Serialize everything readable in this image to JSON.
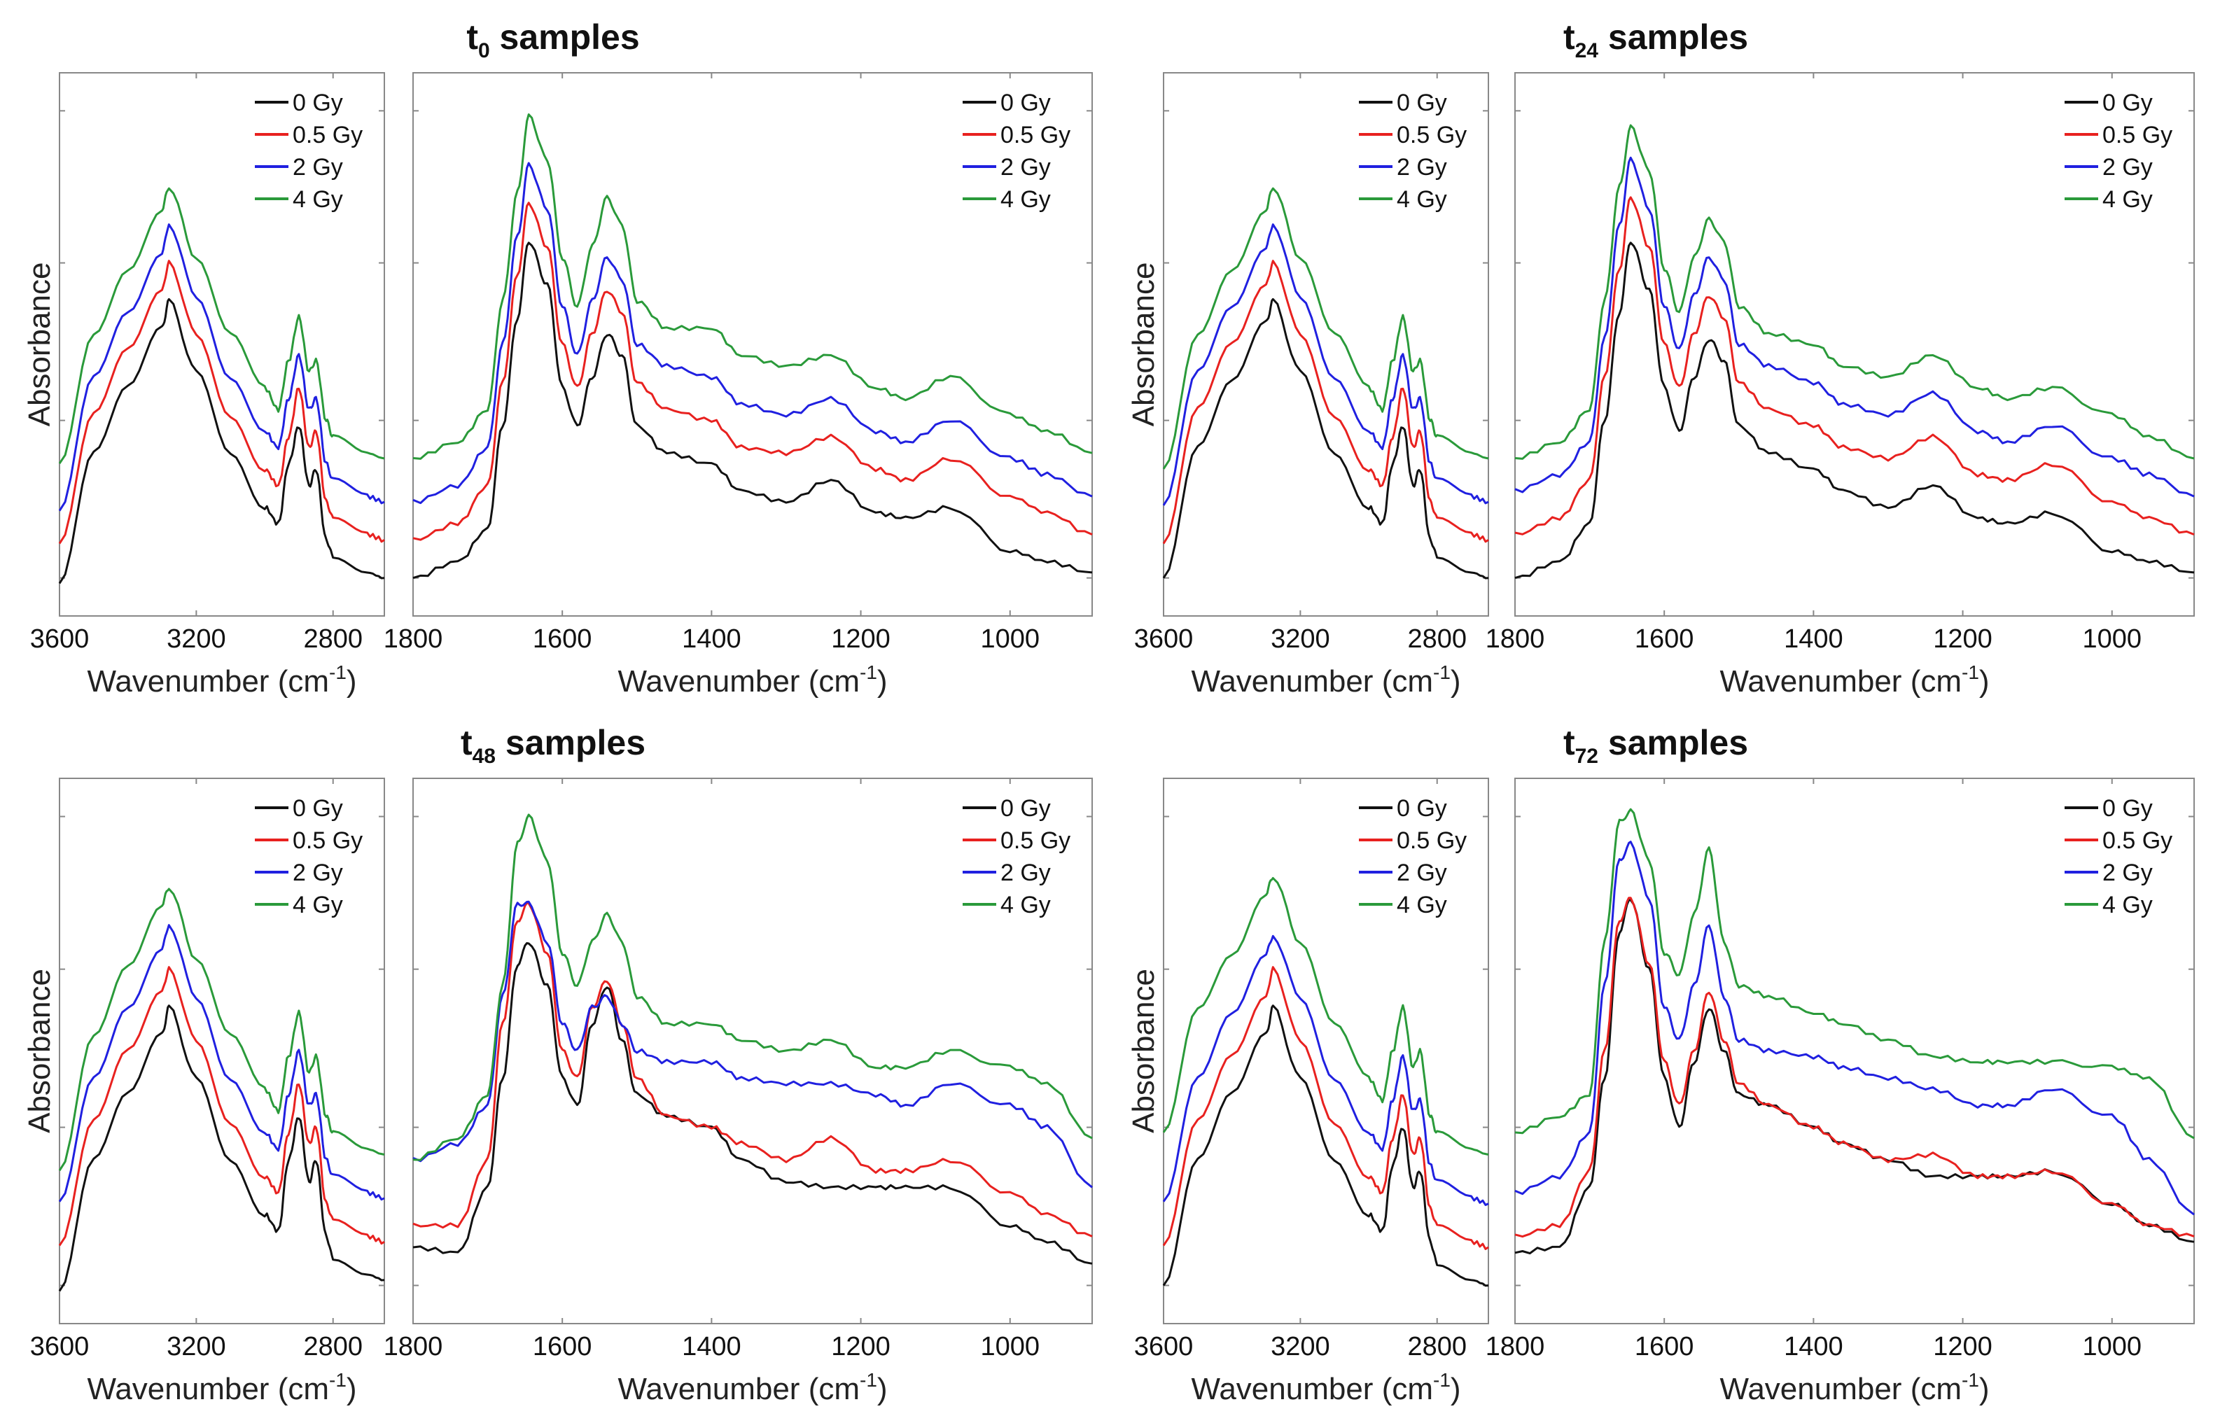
{
  "chart_data": {
    "type": "line",
    "colors": {
      "0 Gy": "#111111",
      "0.5 Gy": "#e8211f",
      "2 Gy": "#2020e0",
      "4 Gy": "#2a9a3a"
    },
    "legend": [
      "0 Gy",
      "0.5 Gy",
      "2 Gy",
      "4 Gy"
    ],
    "legend_placement": "top-right",
    "ylabel": "Absorbance",
    "xlabel": {
      "text": "Wavenumber (cm",
      "sup": "-1",
      "close": ")"
    },
    "high_region": {
      "xlim": [
        3600,
        2650
      ],
      "ticks": [
        3600,
        3200,
        2800
      ],
      "x": [
        3600,
        3500,
        3400,
        3300,
        3280,
        3200,
        3100,
        3000,
        2960,
        2930,
        2900,
        2870,
        2850,
        2820,
        2800,
        2700,
        2650
      ]
    },
    "low_region": {
      "xlim": [
        1800,
        890
      ],
      "ticks": [
        1800,
        1600,
        1400,
        1200,
        1000
      ],
      "x": [
        1800,
        1740,
        1700,
        1680,
        1660,
        1645,
        1620,
        1600,
        1580,
        1560,
        1540,
        1520,
        1500,
        1460,
        1400,
        1360,
        1300,
        1240,
        1180,
        1140,
        1080,
        1000,
        950,
        890
      ]
    },
    "ylim": [
      0,
      1
    ],
    "panels": [
      {
        "title": {
          "t": "t",
          "sub": "0",
          "rest": " samples"
        },
        "high": [
          {
            "name": "0 Gy",
            "y": [
              0.06,
              0.3,
              0.42,
              0.53,
              0.58,
              0.45,
              0.3,
              0.2,
              0.17,
              0.28,
              0.35,
              0.24,
              0.27,
              0.14,
              0.11,
              0.08,
              0.07
            ]
          },
          {
            "name": "0.5 Gy",
            "y": [
              0.13,
              0.37,
              0.49,
              0.6,
              0.65,
              0.52,
              0.37,
              0.27,
              0.24,
              0.33,
              0.42,
              0.31,
              0.34,
              0.21,
              0.18,
              0.15,
              0.14
            ]
          },
          {
            "name": "2 Gy",
            "y": [
              0.19,
              0.44,
              0.56,
              0.67,
              0.72,
              0.59,
              0.44,
              0.34,
              0.31,
              0.4,
              0.48,
              0.38,
              0.4,
              0.28,
              0.25,
              0.22,
              0.21
            ]
          },
          {
            "name": "4 Gy",
            "y": [
              0.28,
              0.52,
              0.64,
              0.75,
              0.79,
              0.66,
              0.52,
              0.42,
              0.38,
              0.47,
              0.55,
              0.45,
              0.47,
              0.36,
              0.33,
              0.3,
              0.29
            ]
          }
        ],
        "low": [
          {
            "name": "0 Gy",
            "y": [
              0.07,
              0.1,
              0.16,
              0.35,
              0.55,
              0.69,
              0.61,
              0.42,
              0.35,
              0.44,
              0.52,
              0.48,
              0.35,
              0.3,
              0.28,
              0.23,
              0.21,
              0.25,
              0.19,
              0.18,
              0.2,
              0.12,
              0.1,
              0.08
            ]
          },
          {
            "name": "0.5 Gy",
            "y": [
              0.14,
              0.17,
              0.24,
              0.43,
              0.63,
              0.76,
              0.68,
              0.5,
              0.42,
              0.52,
              0.6,
              0.56,
              0.43,
              0.38,
              0.36,
              0.31,
              0.3,
              0.33,
              0.27,
              0.25,
              0.29,
              0.22,
              0.19,
              0.15
            ]
          },
          {
            "name": "2 Gy",
            "y": [
              0.21,
              0.24,
              0.31,
              0.5,
              0.7,
              0.83,
              0.75,
              0.57,
              0.48,
              0.58,
              0.66,
              0.62,
              0.5,
              0.46,
              0.44,
              0.39,
              0.37,
              0.4,
              0.34,
              0.32,
              0.36,
              0.29,
              0.26,
              0.22
            ]
          },
          {
            "name": "4 Gy",
            "y": [
              0.29,
              0.32,
              0.38,
              0.58,
              0.78,
              0.92,
              0.84,
              0.66,
              0.57,
              0.68,
              0.77,
              0.72,
              0.58,
              0.53,
              0.53,
              0.48,
              0.46,
              0.48,
              0.42,
              0.4,
              0.44,
              0.37,
              0.34,
              0.3
            ]
          }
        ]
      },
      {
        "title": {
          "t": "t",
          "sub": "24",
          "rest": " samples"
        },
        "high": [
          {
            "name": "0 Gy",
            "y": [
              0.07,
              0.31,
              0.43,
              0.54,
              0.58,
              0.45,
              0.3,
              0.2,
              0.17,
              0.28,
              0.35,
              0.24,
              0.27,
              0.14,
              0.11,
              0.08,
              0.07
            ]
          },
          {
            "name": "0.5 Gy",
            "y": [
              0.13,
              0.38,
              0.5,
              0.61,
              0.65,
              0.52,
              0.37,
              0.27,
              0.24,
              0.33,
              0.42,
              0.31,
              0.34,
              0.21,
              0.18,
              0.15,
              0.14
            ]
          },
          {
            "name": "2 Gy",
            "y": [
              0.2,
              0.45,
              0.57,
              0.68,
              0.72,
              0.59,
              0.44,
              0.34,
              0.31,
              0.4,
              0.48,
              0.38,
              0.4,
              0.28,
              0.25,
              0.22,
              0.21
            ]
          },
          {
            "name": "4 Gy",
            "y": [
              0.27,
              0.52,
              0.64,
              0.75,
              0.79,
              0.66,
              0.52,
              0.42,
              0.38,
              0.47,
              0.55,
              0.45,
              0.47,
              0.36,
              0.33,
              0.3,
              0.29
            ]
          }
        ],
        "low": [
          {
            "name": "0 Gy",
            "y": [
              0.07,
              0.1,
              0.17,
              0.36,
              0.56,
              0.69,
              0.6,
              0.42,
              0.34,
              0.44,
              0.51,
              0.47,
              0.35,
              0.3,
              0.27,
              0.23,
              0.2,
              0.24,
              0.18,
              0.17,
              0.19,
              0.12,
              0.1,
              0.08
            ]
          },
          {
            "name": "0.5 Gy",
            "y": [
              0.15,
              0.18,
              0.25,
              0.44,
              0.64,
              0.77,
              0.68,
              0.5,
              0.42,
              0.52,
              0.59,
              0.55,
              0.43,
              0.38,
              0.35,
              0.31,
              0.29,
              0.33,
              0.26,
              0.25,
              0.28,
              0.21,
              0.18,
              0.15
            ]
          },
          {
            "name": "2 Gy",
            "y": [
              0.23,
              0.26,
              0.32,
              0.51,
              0.72,
              0.84,
              0.75,
              0.57,
              0.49,
              0.59,
              0.66,
              0.62,
              0.5,
              0.46,
              0.43,
              0.39,
              0.37,
              0.41,
              0.34,
              0.32,
              0.35,
              0.29,
              0.26,
              0.22
            ]
          },
          {
            "name": "4 Gy",
            "y": [
              0.29,
              0.32,
              0.38,
              0.58,
              0.79,
              0.9,
              0.82,
              0.64,
              0.56,
              0.66,
              0.73,
              0.69,
              0.57,
              0.52,
              0.5,
              0.46,
              0.44,
              0.48,
              0.42,
              0.4,
              0.42,
              0.37,
              0.33,
              0.29
            ]
          }
        ]
      },
      {
        "title": {
          "t": "t",
          "sub": "48",
          "rest": " samples"
        },
        "high": [
          {
            "name": "0 Gy",
            "y": [
              0.06,
              0.3,
              0.42,
              0.53,
              0.58,
              0.45,
              0.3,
              0.2,
              0.17,
              0.3,
              0.38,
              0.26,
              0.3,
              0.16,
              0.12,
              0.09,
              0.08
            ]
          },
          {
            "name": "0.5 Gy",
            "y": [
              0.14,
              0.37,
              0.5,
              0.61,
              0.65,
              0.52,
              0.37,
              0.27,
              0.24,
              0.35,
              0.44,
              0.33,
              0.36,
              0.22,
              0.19,
              0.16,
              0.15
            ]
          },
          {
            "name": "2 Gy",
            "y": [
              0.22,
              0.45,
              0.58,
              0.69,
              0.73,
              0.6,
              0.45,
              0.35,
              0.32,
              0.42,
              0.5,
              0.4,
              0.42,
              0.3,
              0.27,
              0.24,
              0.23
            ]
          },
          {
            "name": "4 Gy",
            "y": [
              0.28,
              0.53,
              0.66,
              0.77,
              0.8,
              0.67,
              0.53,
              0.43,
              0.39,
              0.49,
              0.57,
              0.46,
              0.49,
              0.38,
              0.35,
              0.32,
              0.31
            ]
          }
        ],
        "low": [
          {
            "name": "0 Gy",
            "y": [
              0.14,
              0.13,
              0.25,
              0.45,
              0.66,
              0.7,
              0.62,
              0.45,
              0.4,
              0.55,
              0.62,
              0.52,
              0.42,
              0.38,
              0.36,
              0.3,
              0.26,
              0.25,
              0.25,
              0.25,
              0.25,
              0.18,
              0.15,
              0.11
            ]
          },
          {
            "name": "0.5 Gy",
            "y": [
              0.18,
              0.18,
              0.3,
              0.55,
              0.74,
              0.77,
              0.68,
              0.5,
              0.45,
              0.58,
              0.63,
              0.55,
              0.45,
              0.38,
              0.36,
              0.33,
              0.3,
              0.34,
              0.28,
              0.28,
              0.3,
              0.24,
              0.2,
              0.16
            ]
          },
          {
            "name": "2 Gy",
            "y": [
              0.3,
              0.33,
              0.4,
              0.6,
              0.77,
              0.77,
              0.7,
              0.55,
              0.5,
              0.58,
              0.6,
              0.55,
              0.5,
              0.48,
              0.48,
              0.45,
              0.44,
              0.44,
              0.42,
              0.4,
              0.44,
              0.4,
              0.36,
              0.25
            ]
          },
          {
            "name": "4 Gy",
            "y": [
              0.3,
              0.34,
              0.42,
              0.62,
              0.88,
              0.93,
              0.85,
              0.68,
              0.62,
              0.7,
              0.75,
              0.7,
              0.6,
              0.55,
              0.55,
              0.52,
              0.5,
              0.52,
              0.47,
              0.47,
              0.5,
              0.47,
              0.44,
              0.34
            ]
          }
        ]
      },
      {
        "title": {
          "t": "t",
          "sub": "72",
          "rest": " samples"
        },
        "high": [
          {
            "name": "0 Gy",
            "y": [
              0.07,
              0.3,
              0.42,
              0.53,
              0.58,
              0.45,
              0.3,
              0.2,
              0.17,
              0.29,
              0.36,
              0.25,
              0.28,
              0.15,
              0.11,
              0.08,
              0.07
            ]
          },
          {
            "name": "0.5 Gy",
            "y": [
              0.14,
              0.37,
              0.49,
              0.6,
              0.65,
              0.52,
              0.37,
              0.27,
              0.24,
              0.34,
              0.42,
              0.31,
              0.34,
              0.21,
              0.18,
              0.15,
              0.14
            ]
          },
          {
            "name": "2 Gy",
            "y": [
              0.22,
              0.45,
              0.57,
              0.68,
              0.71,
              0.6,
              0.45,
              0.35,
              0.32,
              0.41,
              0.49,
              0.39,
              0.41,
              0.29,
              0.26,
              0.23,
              0.22
            ]
          },
          {
            "name": "4 Gy",
            "y": [
              0.35,
              0.58,
              0.68,
              0.79,
              0.82,
              0.7,
              0.55,
              0.45,
              0.41,
              0.5,
              0.58,
              0.47,
              0.5,
              0.38,
              0.35,
              0.32,
              0.31
            ]
          }
        ],
        "low": [
          {
            "name": "0 Gy",
            "y": [
              0.13,
              0.14,
              0.25,
              0.45,
              0.72,
              0.78,
              0.65,
              0.45,
              0.36,
              0.48,
              0.58,
              0.5,
              0.42,
              0.4,
              0.36,
              0.33,
              0.3,
              0.27,
              0.27,
              0.27,
              0.28,
              0.22,
              0.18,
              0.15
            ]
          },
          {
            "name": "0.5 Gy",
            "y": [
              0.16,
              0.18,
              0.28,
              0.5,
              0.74,
              0.78,
              0.66,
              0.48,
              0.4,
              0.5,
              0.61,
              0.52,
              0.44,
              0.4,
              0.36,
              0.33,
              0.3,
              0.31,
              0.27,
              0.27,
              0.28,
              0.22,
              0.18,
              0.16
            ]
          },
          {
            "name": "2 Gy",
            "y": [
              0.24,
              0.27,
              0.35,
              0.62,
              0.85,
              0.88,
              0.78,
              0.58,
              0.52,
              0.62,
              0.73,
              0.6,
              0.52,
              0.5,
              0.49,
              0.47,
              0.45,
              0.43,
              0.4,
              0.4,
              0.43,
              0.38,
              0.3,
              0.2
            ]
          },
          {
            "name": "4 Gy",
            "y": [
              0.35,
              0.38,
              0.42,
              0.7,
              0.92,
              0.94,
              0.85,
              0.68,
              0.64,
              0.75,
              0.87,
              0.7,
              0.62,
              0.6,
              0.57,
              0.55,
              0.52,
              0.49,
              0.48,
              0.48,
              0.48,
              0.47,
              0.45,
              0.34
            ]
          }
        ]
      }
    ]
  }
}
